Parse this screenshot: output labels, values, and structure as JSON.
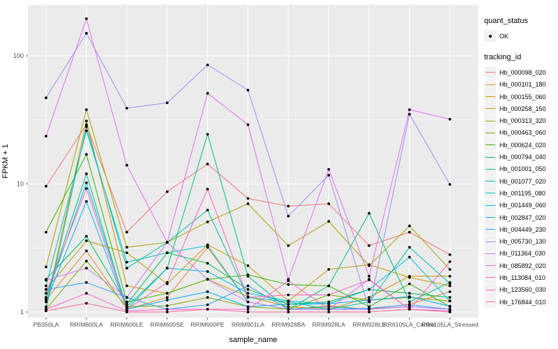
{
  "chart_data": {
    "type": "line",
    "title": "",
    "xlabel": "sample_name",
    "ylabel": "FPKM + 1",
    "y_scale": "log10",
    "ylim": [
      1,
      260
    ],
    "y_ticks": [
      1,
      10,
      100
    ],
    "y_tick_labels": [
      "1",
      "10",
      "100"
    ],
    "y_minor_ticks": [
      3.162,
      31.62
    ],
    "grid": "on",
    "panel_bg": "#EBEBEB",
    "grid_color": "#FFFFFF",
    "point_color": "#000000",
    "tick_label_color": "#4D4D4D",
    "legend_position": "right",
    "categories": [
      "PB350LA",
      "RRIM600LA",
      "RRIM600LE",
      "RRIM600SE",
      "RRIM600PE",
      "RRIM901LA",
      "RRIM928BA",
      "RRIM928LA",
      "RRIM928LE",
      "RRII105LA_Control",
      "RRII105LA_Stressed"
    ],
    "legend": {
      "quant_status_title": "quant_status",
      "quant_status_items": [
        {
          "label": "OK"
        }
      ],
      "tracking_title": "tracking_id"
    },
    "series": [
      {
        "name": "Hb_000098_020",
        "color": "#F8766D",
        "values": [
          9.6,
          29,
          4.2,
          8.7,
          14.3,
          7.7,
          6.7,
          7.0,
          3.3,
          4.2,
          2.8
        ]
      },
      {
        "name": "Hb_000101_180",
        "color": "#EA8331",
        "values": [
          1.25,
          3.0,
          1.05,
          1.3,
          3.2,
          1.2,
          1.05,
          1.12,
          1.05,
          1.15,
          1.44
        ]
      },
      {
        "name": "Hb_000155_060",
        "color": "#D89000",
        "values": [
          1.1,
          31,
          1.6,
          1.4,
          1.8,
          1.32,
          1.1,
          1.05,
          1.3,
          1.9,
          1.9
        ]
      },
      {
        "name": "Hb_000258_150",
        "color": "#C09B00",
        "values": [
          1.5,
          3.6,
          2.9,
          1.66,
          3.35,
          2.3,
          1.22,
          2.15,
          2.34,
          1.86,
          1.6
        ]
      },
      {
        "name": "Hb_000313_320",
        "color": "#A3A500",
        "values": [
          2.25,
          38,
          3.2,
          3.5,
          5.05,
          7.0,
          3.3,
          5.1,
          2.3,
          4.7,
          2.15
        ]
      },
      {
        "name": "Hb_000463_060",
        "color": "#7CAE00",
        "values": [
          1.05,
          2.5,
          1.1,
          1.12,
          1.3,
          1.1,
          1.05,
          1.36,
          1.24,
          1.3,
          1.22
        ]
      },
      {
        "name": "Hb_000624_020",
        "color": "#39B600",
        "values": [
          4.2,
          17,
          1.2,
          1.4,
          1.8,
          1.95,
          1.64,
          1.6,
          1.1,
          1.66,
          1.1
        ]
      },
      {
        "name": "Hb_000794_040",
        "color": "#00BB4E",
        "values": [
          1.8,
          3.9,
          1.15,
          2.9,
          2.4,
          1.5,
          1.15,
          1.2,
          1.5,
          1.4,
          1.3
        ]
      },
      {
        "name": "Hb_001001_050",
        "color": "#00BF7D",
        "values": [
          1.3,
          12,
          1.05,
          2.2,
          24.4,
          1.9,
          1.05,
          1.6,
          5.9,
          1.2,
          1.7
        ]
      },
      {
        "name": "Hb_001077_020",
        "color": "#00C1A3",
        "values": [
          1.05,
          28,
          2.2,
          3.5,
          6.25,
          1.3,
          1.2,
          1.05,
          1.2,
          3.2,
          1.67
        ]
      },
      {
        "name": "Hb_001195_080",
        "color": "#00BFC4",
        "values": [
          1.6,
          26,
          2.45,
          2.9,
          3.3,
          1.2,
          1.05,
          1.1,
          1.05,
          1.1,
          1.05
        ]
      },
      {
        "name": "Hb_001449_060",
        "color": "#00BAE0",
        "values": [
          1.27,
          10.2,
          1.1,
          2.2,
          2.07,
          1.4,
          1.22,
          1.16,
          1.5,
          2.68,
          1.22
        ]
      },
      {
        "name": "Hb_002847_020",
        "color": "#00B0F6",
        "values": [
          1.2,
          7.3,
          1.05,
          1.24,
          1.44,
          1.1,
          1.15,
          1.16,
          1.24,
          1.32,
          1.11
        ]
      },
      {
        "name": "Hb_004449_230",
        "color": "#35A2FF",
        "values": [
          1.5,
          1.7,
          1.3,
          1.05,
          1.14,
          1.6,
          1.05,
          1.05,
          1.07,
          1.14,
          1.05
        ]
      },
      {
        "name": "Hb_005730_130",
        "color": "#9590FF",
        "values": [
          47,
          150,
          39,
          43,
          85,
          54,
          5.6,
          11.7,
          1.05,
          35,
          9.9
        ]
      },
      {
        "name": "Hb_011364_030",
        "color": "#C77CFF",
        "values": [
          1.77,
          2.2,
          1.3,
          3.5,
          1.8,
          1.2,
          1.05,
          1.05,
          1.05,
          1.1,
          1.05
        ]
      },
      {
        "name": "Hb_085892_020",
        "color": "#E76BF3",
        "values": [
          23.6,
          195,
          14,
          3.5,
          51,
          29,
          1.8,
          13,
          1.9,
          38,
          32
        ]
      },
      {
        "name": "Hb_113084_010",
        "color": "#FA62DB",
        "values": [
          1.05,
          1.4,
          1.02,
          1.05,
          1.05,
          1.05,
          1.75,
          1.05,
          1.8,
          1.05,
          1.02
        ]
      },
      {
        "name": "Hb_123560_030",
        "color": "#FF62BC",
        "values": [
          1.4,
          9.2,
          1.05,
          1.7,
          9.1,
          1.3,
          1.36,
          1.36,
          1.78,
          1.05,
          2.47
        ]
      },
      {
        "name": "Hb_176844_010",
        "color": "#FF6A98",
        "values": [
          1.02,
          1.17,
          1.0,
          1.0,
          1.05,
          1.0,
          1.0,
          1.0,
          1.0,
          1.05,
          1.0
        ]
      }
    ]
  }
}
